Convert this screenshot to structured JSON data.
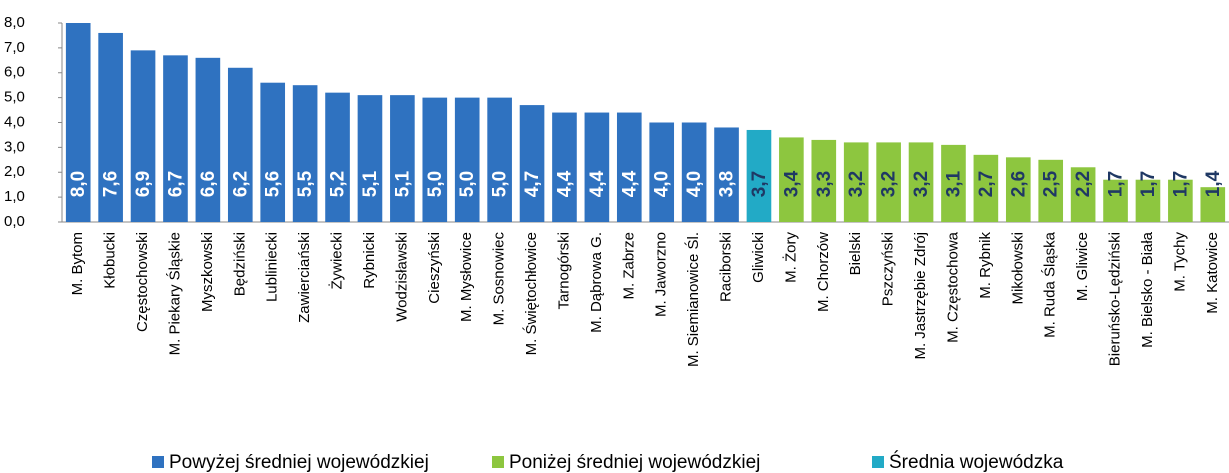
{
  "chart_data": {
    "type": "bar",
    "categories": [
      "M. Bytom",
      "Kłobucki",
      "Częstochowski",
      "M. Piekary Śląskie",
      "Myszkowski",
      "Będziński",
      "Lubliniecki",
      "Zawierciański",
      "Żywiecki",
      "Rybnicki",
      "Wodzisławski",
      "Cieszyński",
      "M. Mysłowice",
      "M. Sosnowiec",
      "M. Świętochłowice",
      "Tarnogórski",
      "M. Dąbrowa G.",
      "M. Zabrze",
      "M. Jaworzno",
      "M. Siemianowice Śl.",
      "Raciborski",
      "Gliwicki",
      "M. Żory",
      "M. Chorzów",
      "Bielski",
      "Pszczyński",
      "M. Jastrzębie Zdrój",
      "M. Częstochowa",
      "M. Rybnik",
      "Mikołowski",
      "M. Ruda  Śląska",
      "M. Gliwice",
      "Bieruńsko-Lędziński",
      "M. Bielsko - Biała",
      "M. Tychy",
      "M. Katowice"
    ],
    "values": [
      8.0,
      7.6,
      6.9,
      6.7,
      6.6,
      6.2,
      5.6,
      5.5,
      5.2,
      5.1,
      5.1,
      5.0,
      5.0,
      5.0,
      4.7,
      4.4,
      4.4,
      4.4,
      4.0,
      4.0,
      3.8,
      3.7,
      3.4,
      3.3,
      3.2,
      3.2,
      3.2,
      3.1,
      2.7,
      2.6,
      2.5,
      2.2,
      1.7,
      1.7,
      1.7,
      1.4
    ],
    "value_labels": [
      "8,0",
      "7,6",
      "6,9",
      "6,7",
      "6,6",
      "6,2",
      "5,6",
      "5,5",
      "5,2",
      "5,1",
      "5,1",
      "5,0",
      "5,0",
      "5,0",
      "4,7",
      "4,4",
      "4,4",
      "4,4",
      "4,0",
      "4,0",
      "3,8",
      "3,7",
      "3,4",
      "3,3",
      "3,2",
      "3,2",
      "3,2",
      "3,1",
      "2,7",
      "2,6",
      "2,5",
      "2,2",
      "1,7",
      "1,7",
      "1,7",
      "1,4"
    ],
    "groups": [
      0,
      0,
      0,
      0,
      0,
      0,
      0,
      0,
      0,
      0,
      0,
      0,
      0,
      0,
      0,
      0,
      0,
      0,
      0,
      0,
      0,
      2,
      1,
      1,
      1,
      1,
      1,
      1,
      1,
      1,
      1,
      1,
      1,
      1,
      1,
      1
    ],
    "legend": [
      {
        "name": "Powyżej średniej wojewódzkiej",
        "color": "#2f72c0",
        "label_color": "#ffffff"
      },
      {
        "name": "Poniżej średniej wojewódzkiej",
        "color": "#8dc63f",
        "label_color": "#1f3864"
      },
      {
        "name": "Średnia wojewódzka",
        "color": "#22aac6",
        "label_color": "#1f3864"
      }
    ],
    "ylim": [
      0,
      8
    ],
    "yticks": [
      {
        "value": 0,
        "label": "0,0"
      },
      {
        "value": 1,
        "label": "1,0"
      },
      {
        "value": 2,
        "label": "2,0"
      },
      {
        "value": 3,
        "label": "3,0"
      },
      {
        "value": 4,
        "label": "4,0"
      },
      {
        "value": 5,
        "label": "5,0"
      },
      {
        "value": 6,
        "label": "6,0"
      },
      {
        "value": 7,
        "label": "7,0"
      },
      {
        "value": 8,
        "label": "8,0"
      }
    ]
  }
}
